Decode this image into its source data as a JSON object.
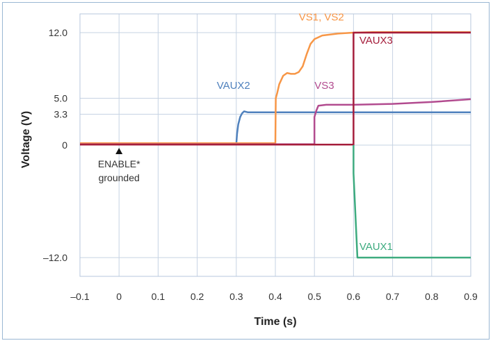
{
  "chart_data": {
    "type": "line",
    "xlabel": "Time (s)",
    "ylabel": "Voltage (V)",
    "xlim": [
      -0.1,
      0.9
    ],
    "ylim": [
      -14,
      14
    ],
    "grid": true,
    "x_ticks": [
      "–0.1",
      "0",
      "0.1",
      "0.2",
      "0.3",
      "0.4",
      "0.5",
      "0.6",
      "0.7",
      "0.8",
      "0.9"
    ],
    "x_tick_values": [
      -0.1,
      0,
      0.1,
      0.2,
      0.3,
      0.4,
      0.5,
      0.6,
      0.7,
      0.8,
      0.9
    ],
    "y_ticks": [
      {
        "label": "12.0",
        "value": 12
      },
      {
        "label": "5.0",
        "value": 5
      },
      {
        "label": "3.3",
        "value": 3.3
      },
      {
        "label": "0",
        "value": 0
      },
      {
        "label": "–12.0",
        "value": -12
      }
    ],
    "series": [
      {
        "name": "VAUX2",
        "color": "#4f81bd",
        "x": [
          -0.1,
          0.3,
          0.302,
          0.305,
          0.31,
          0.315,
          0.32,
          0.33,
          0.35,
          0.4,
          0.5,
          0.6,
          0.7,
          0.8,
          0.9
        ],
        "y": [
          0.1,
          0.1,
          1.2,
          2.2,
          3.0,
          3.4,
          3.6,
          3.5,
          3.5,
          3.5,
          3.5,
          3.5,
          3.5,
          3.5,
          3.5
        ],
        "label_x": 0.25,
        "label_y": 6.0
      },
      {
        "name": "VS1, VS2",
        "color": "#f79646",
        "x": [
          -0.1,
          0.4,
          0.401,
          0.405,
          0.41,
          0.42,
          0.43,
          0.44,
          0.45,
          0.46,
          0.47,
          0.48,
          0.49,
          0.5,
          0.52,
          0.54,
          0.56,
          0.6,
          0.65,
          0.7,
          0.8,
          0.9
        ],
        "y": [
          0.2,
          0.2,
          5.0,
          5.6,
          6.5,
          7.4,
          7.7,
          7.6,
          7.6,
          7.8,
          8.4,
          9.7,
          10.8,
          11.3,
          11.7,
          11.8,
          11.9,
          12.0,
          12.05,
          12.05,
          12.05,
          12.05
        ],
        "label_x": 0.46,
        "label_y": 13.3
      },
      {
        "name": "VS3",
        "color": "#b24b8f",
        "x": [
          -0.1,
          0.5,
          0.5,
          0.505,
          0.51,
          0.53,
          0.56,
          0.6,
          0.7,
          0.8,
          0.9
        ],
        "y": [
          0.1,
          0.1,
          3.0,
          3.7,
          4.2,
          4.3,
          4.3,
          4.3,
          4.4,
          4.6,
          4.9
        ],
        "label_x": 0.5,
        "label_y": 6.0
      },
      {
        "name": "VAUX3",
        "color": "#a51d3b",
        "x": [
          -0.1,
          0.6,
          0.6,
          0.9
        ],
        "y": [
          0.05,
          0.05,
          12.0,
          12.0
        ],
        "label_x": 0.615,
        "label_y": 10.8
      },
      {
        "name": "VAUX1",
        "color": "#3dab7f",
        "x": [
          0.6,
          0.6,
          0.61,
          0.7,
          0.8,
          0.9
        ],
        "y": [
          0.0,
          -3.0,
          -12.0,
          -12.0,
          -12.0,
          -12.0
        ],
        "label_x": 0.615,
        "label_y": -11.2
      }
    ],
    "annotations": [
      {
        "text": "ENABLE*",
        "x": 0.0
      },
      {
        "text": "grounded",
        "x": 0.0
      }
    ]
  }
}
